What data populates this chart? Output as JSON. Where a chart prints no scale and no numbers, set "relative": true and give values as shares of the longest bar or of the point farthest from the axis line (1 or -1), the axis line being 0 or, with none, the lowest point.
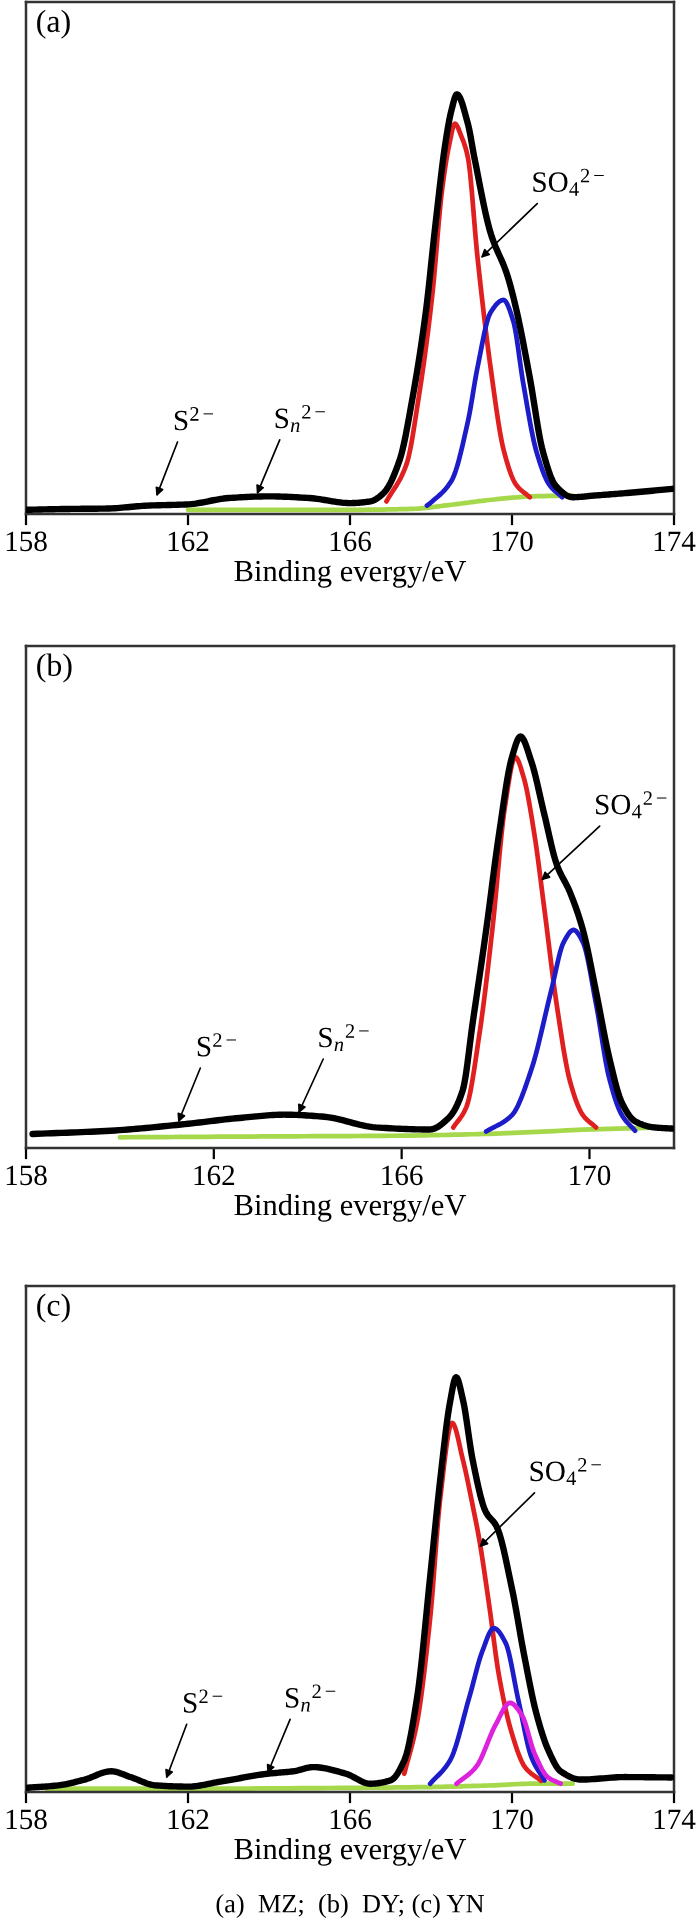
{
  "chart_data": [
    {
      "type": "line",
      "title": "(a)",
      "xlabel": "Binding evergy/eV",
      "relative": true,
      "tick_labels": "x",
      "xlim": [
        158,
        174
      ],
      "xticks": [
        158,
        162,
        166,
        170,
        174
      ],
      "series": [
        {
          "color": "#a6d84c",
          "x": [
            162,
            164,
            166,
            167.5,
            168.5,
            169.5,
            170.5,
            171.5
          ],
          "values": [
            0.01,
            0.01,
            0.01,
            0.012,
            0.022,
            0.034,
            0.042,
            0.044
          ]
        },
        {
          "color": "#e02020",
          "x": [
            166.9,
            167.4,
            167.7,
            168.03,
            168.27,
            168.45,
            168.59,
            168.75,
            168.91,
            169.15,
            169.47,
            169.8,
            170.1,
            170.44
          ],
          "values": [
            0.03,
            0.12,
            0.28,
            0.52,
            0.77,
            0.88,
            0.93,
            0.9,
            0.85,
            0.61,
            0.35,
            0.15,
            0.07,
            0.04
          ]
        },
        {
          "color": "#1c1cc8",
          "x": [
            167.9,
            168.03,
            168.51,
            168.91,
            169.15,
            169.47,
            169.79,
            170.03,
            170.28,
            170.6,
            170.92,
            171.24
          ],
          "values": [
            0.02,
            0.03,
            0.08,
            0.22,
            0.35,
            0.48,
            0.51,
            0.46,
            0.31,
            0.15,
            0.07,
            0.04
          ]
        },
        {
          "color": "#000000",
          "x": [
            158,
            159,
            160,
            161,
            162,
            163,
            164,
            165,
            166,
            166.5,
            166.83,
            167.23,
            167.55,
            167.87,
            168.11,
            168.35,
            168.5,
            168.64,
            168.91,
            169.07,
            169.47,
            169.88,
            170.1,
            170.43,
            170.76,
            171.08,
            171.5,
            172.04,
            172.84,
            173.96
          ],
          "values": [
            0.01,
            0.012,
            0.013,
            0.02,
            0.023,
            0.038,
            0.042,
            0.038,
            0.026,
            0.03,
            0.05,
            0.13,
            0.28,
            0.48,
            0.69,
            0.88,
            0.96,
            1.0,
            0.93,
            0.85,
            0.67,
            0.57,
            0.49,
            0.33,
            0.15,
            0.067,
            0.04,
            0.044,
            0.05,
            0.06
          ]
        }
      ],
      "annotations": [
        {
          "text": "S$^{2−}$",
          "x": 161.22,
          "y": 0.042
        },
        {
          "text": "S$_{n}$$^{2−}$",
          "x": 163.7,
          "y": 0.047
        },
        {
          "text": "SO$_{4}$$^{2−}$",
          "x": 169.23,
          "y": 0.61
        }
      ]
    },
    {
      "type": "line",
      "title": "(b)",
      "xlabel": "Binding evergy/eV",
      "relative": true,
      "tick_labels": "x",
      "xlim": [
        158,
        171.8
      ],
      "xticks": [
        158,
        162,
        166,
        170
      ],
      "series": [
        {
          "color": "#a6d84c",
          "x": [
            160,
            163,
            166,
            168,
            170,
            171.5
          ],
          "values": [
            0.026,
            0.028,
            0.03,
            0.035,
            0.045,
            0.05
          ]
        },
        {
          "color": "#e02020",
          "x": [
            167.1,
            167.38,
            167.66,
            167.93,
            168.2,
            168.42,
            168.6,
            168.83,
            169.04,
            169.3,
            169.59,
            169.86,
            170.14
          ],
          "values": [
            0.05,
            0.1,
            0.28,
            0.53,
            0.83,
            0.95,
            0.9,
            0.76,
            0.58,
            0.35,
            0.16,
            0.08,
            0.05
          ]
        },
        {
          "color": "#1c1cc8",
          "x": [
            167.8,
            168.35,
            168.76,
            169.18,
            169.45,
            169.66,
            169.86,
            170.14,
            170.42,
            170.69,
            170.97
          ],
          "values": [
            0.04,
            0.08,
            0.19,
            0.38,
            0.5,
            0.53,
            0.5,
            0.35,
            0.17,
            0.08,
            0.042
          ]
        },
        {
          "color": "#000000",
          "x": [
            158.14,
            159.8,
            161.3,
            162.55,
            163.5,
            164.35,
            165.45,
            166.6,
            167.0,
            167.3,
            167.52,
            167.8,
            168.07,
            168.35,
            168.53,
            168.76,
            169.04,
            169.3,
            169.59,
            169.86,
            170.14,
            170.42,
            170.69,
            170.97,
            171.38,
            171.8
          ],
          "values": [
            0.034,
            0.042,
            0.057,
            0.073,
            0.081,
            0.076,
            0.05,
            0.045,
            0.073,
            0.14,
            0.31,
            0.53,
            0.76,
            0.95,
            1.0,
            0.94,
            0.81,
            0.69,
            0.62,
            0.53,
            0.38,
            0.22,
            0.11,
            0.065,
            0.05,
            0.047
          ]
        }
      ],
      "annotations": [
        {
          "text": "S$^{2−}$",
          "x": 161.24,
          "y": 0.062
        },
        {
          "text": "S$_{n}$$^{2−}$",
          "x": 163.8,
          "y": 0.084
        },
        {
          "text": "SO$_{4}$$^{2−}$",
          "x": 168.97,
          "y": 0.65
        }
      ]
    },
    {
      "type": "line",
      "title": "(c)",
      "xlabel": "Binding evergy/eV",
      "relative": true,
      "tick_labels": "x",
      "xlim": [
        158,
        174
      ],
      "xticks": [
        158,
        162,
        166,
        170,
        174
      ],
      "series": [
        {
          "color": "#a6d84c",
          "x": [
            158.5,
            162,
            166,
            168,
            169.5,
            170.5,
            171.5
          ],
          "values": [
            0.008,
            0.008,
            0.01,
            0.012,
            0.016,
            0.02,
            0.02
          ]
        },
        {
          "color": "#e02020",
          "x": [
            167.34,
            167.66,
            167.98,
            168.23,
            168.52,
            168.79,
            169.03,
            169.19,
            169.43,
            169.68,
            170.0,
            170.32,
            170.72
          ],
          "values": [
            0.044,
            0.17,
            0.42,
            0.71,
            0.89,
            0.8,
            0.69,
            0.61,
            0.455,
            0.28,
            0.14,
            0.06,
            0.027
          ]
        },
        {
          "color": "#1c1cc8",
          "x": [
            167.98,
            168.47,
            168.95,
            169.27,
            169.55,
            169.84,
            170.16,
            170.48,
            170.8
          ],
          "values": [
            0.02,
            0.076,
            0.23,
            0.34,
            0.395,
            0.36,
            0.22,
            0.084,
            0.028
          ]
        },
        {
          "color": "#dd22dd",
          "x": [
            168.63,
            169.11,
            169.6,
            169.95,
            170.24,
            170.56,
            170.88,
            171.2
          ],
          "values": [
            0.02,
            0.06,
            0.163,
            0.215,
            0.186,
            0.092,
            0.036,
            0.02
          ]
        },
        {
          "color": "#000000",
          "x": [
            158,
            158.8,
            159.45,
            160.1,
            160.58,
            161.2,
            162.0,
            162.8,
            163.96,
            164.6,
            165.1,
            165.9,
            166.5,
            167.0,
            167.34,
            167.66,
            167.98,
            168.23,
            168.47,
            168.62,
            168.79,
            169.03,
            169.35,
            169.62,
            170.0,
            170.3,
            170.6,
            170.9,
            171.2,
            171.7,
            172.8,
            173.94
          ],
          "values": [
            0.01,
            0.016,
            0.03,
            0.05,
            0.036,
            0.016,
            0.013,
            0.025,
            0.044,
            0.05,
            0.06,
            0.044,
            0.02,
            0.028,
            0.076,
            0.23,
            0.52,
            0.755,
            0.94,
            1.0,
            0.945,
            0.8,
            0.676,
            0.64,
            0.49,
            0.33,
            0.19,
            0.1,
            0.05,
            0.03,
            0.036,
            0.035
          ]
        }
      ],
      "annotations": [
        {
          "text": "S$^{2−}$",
          "x": 161.46,
          "y": 0.032
        },
        {
          "text": "S$_{n}$$^{2−}$",
          "x": 163.96,
          "y": 0.044
        },
        {
          "text": "SO$_{4}$$^{2−}$",
          "x": 169.19,
          "y": 0.59
        },
        "(a)  MZ;  (b)  DY; (c) YN"
      ]
    }
  ]
}
